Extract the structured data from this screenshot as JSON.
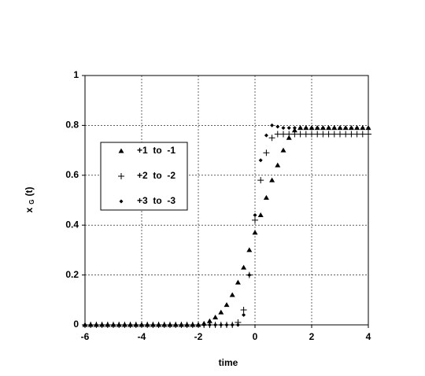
{
  "chart_data": {
    "type": "scatter",
    "x_label": "time",
    "y_label": {
      "main": "x",
      "sub": "G",
      "arg": "(t)"
    },
    "x": [
      -6,
      -5.8,
      -5.6,
      -5.4,
      -5.2,
      -5,
      -4.8,
      -4.6,
      -4.4,
      -4.2,
      -4,
      -3.8,
      -3.6,
      -3.4,
      -3.2,
      -3,
      -2.8,
      -2.6,
      -2.4,
      -2.2,
      -2,
      -1.8,
      -1.6,
      -1.4,
      -1.2,
      -1,
      -0.8,
      -0.6,
      -0.4,
      -0.2,
      0,
      0.2,
      0.4,
      0.6,
      0.8,
      1,
      1.2,
      1.4,
      1.6,
      1.8,
      2,
      2.2,
      2.4,
      2.6,
      2.8,
      3,
      3.2,
      3.4,
      3.6,
      3.8,
      4
    ],
    "series": [
      {
        "name": "+1  to  -1",
        "marker": "triangle",
        "color": "#000000",
        "values": [
          0,
          0,
          0,
          0,
          0,
          0,
          0,
          0,
          0,
          0,
          0,
          0,
          0,
          0,
          0,
          0,
          0,
          0,
          0,
          0,
          0,
          0.005,
          0.015,
          0.03,
          0.05,
          0.08,
          0.12,
          0.17,
          0.23,
          0.3,
          0.37,
          0.44,
          0.51,
          0.58,
          0.64,
          0.7,
          0.75,
          0.78,
          0.79,
          0.79,
          0.79,
          0.79,
          0.79,
          0.79,
          0.79,
          0.79,
          0.79,
          0.79,
          0.79,
          0.79,
          0.79
        ]
      },
      {
        "name": "+2  to  -2",
        "marker": "plus",
        "color": "#000000",
        "values": [
          0,
          0,
          0,
          0,
          0,
          0,
          0,
          0,
          0,
          0,
          0,
          0,
          0,
          0,
          0,
          0,
          0,
          0,
          0,
          0,
          0,
          0,
          0,
          0,
          0,
          0,
          0,
          0.01,
          0.06,
          0.2,
          0.42,
          0.58,
          0.69,
          0.75,
          0.765,
          0.765,
          0.765,
          0.765,
          0.765,
          0.765,
          0.765,
          0.765,
          0.765,
          0.765,
          0.765,
          0.765,
          0.765,
          0.765,
          0.765,
          0.765,
          0.765
        ]
      },
      {
        "name": "+3  to  -3",
        "marker": "diamond",
        "color": "#000000",
        "values": [
          0,
          0,
          0,
          0,
          0,
          0,
          0,
          0,
          0,
          0,
          0,
          0,
          0,
          0,
          0,
          0,
          0,
          0,
          0,
          0,
          0,
          0,
          0,
          0,
          0,
          0,
          0,
          0,
          0.04,
          0.2,
          0.44,
          0.66,
          0.76,
          0.8,
          0.795,
          0.79,
          0.79,
          0.79,
          0.79,
          0.79,
          0.79,
          0.79,
          0.79,
          0.79,
          0.79,
          0.79,
          0.79,
          0.79,
          0.79,
          0.79,
          0.79
        ]
      }
    ],
    "xlim": [
      -6,
      4
    ],
    "xticks": [
      -6,
      -4,
      -2,
      0,
      2,
      4
    ],
    "ylim": [
      0,
      1
    ],
    "yticks": [
      0,
      0.2,
      0.4,
      0.6,
      0.8,
      1
    ],
    "grid": true,
    "legend": "left"
  }
}
